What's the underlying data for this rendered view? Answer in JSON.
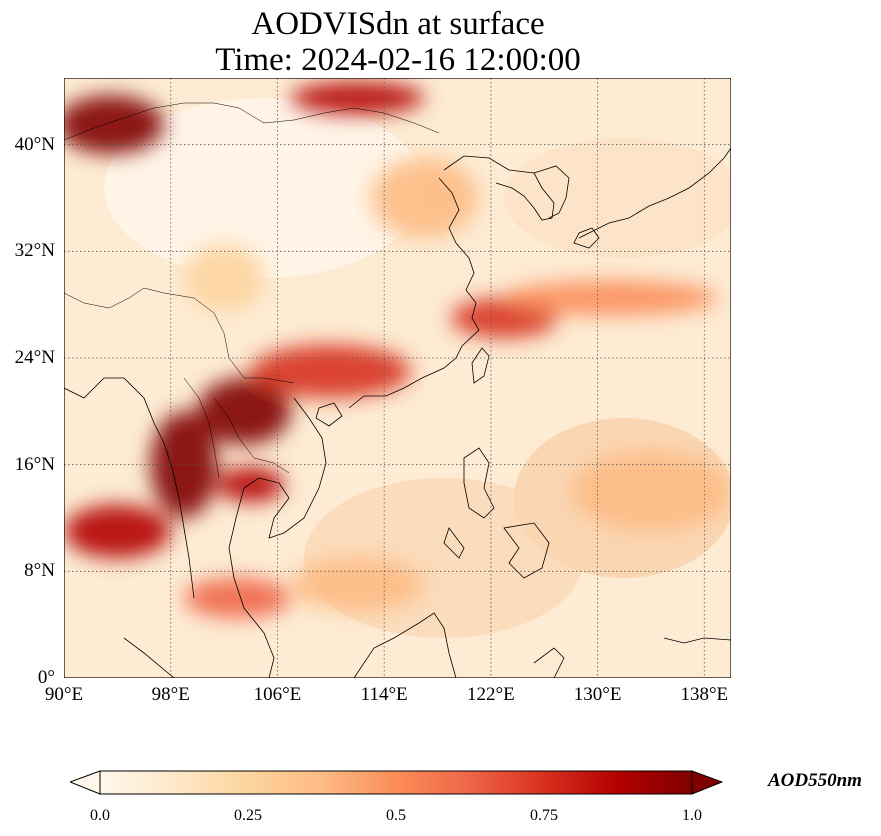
{
  "title_line1": "AODVISdn at surface",
  "title_line2": "Time: 2024-02-16 12:00:00",
  "map": {
    "projection": "PlateCarree",
    "lon_range": [
      90,
      140
    ],
    "lat_range": [
      0,
      45
    ],
    "lat_ticks": [
      {
        "value": 0,
        "label": "0°"
      },
      {
        "value": 8,
        "label": "8°N"
      },
      {
        "value": 16,
        "label": "16°N"
      },
      {
        "value": 24,
        "label": "24°N"
      },
      {
        "value": 32,
        "label": "32°N"
      },
      {
        "value": 40,
        "label": "40°N"
      }
    ],
    "lon_ticks": [
      {
        "value": 90,
        "label": "90°E"
      },
      {
        "value": 98,
        "label": "98°E"
      },
      {
        "value": 106,
        "label": "106°E"
      },
      {
        "value": 114,
        "label": "114°E"
      },
      {
        "value": 122,
        "label": "122°E"
      },
      {
        "value": 130,
        "label": "130°E"
      },
      {
        "value": 138,
        "label": "138°E"
      }
    ],
    "gridlines": "dotted",
    "field": "AOD550nm",
    "plumes": [
      {
        "name": "west-china-north",
        "lon": 93.5,
        "lat": 41.5,
        "rlon": 4,
        "rlat": 2.2,
        "aod": 1.0
      },
      {
        "name": "mongolia-strip",
        "lon": 112,
        "lat": 43.5,
        "rlon": 5,
        "rlat": 1.2,
        "aod": 0.9
      },
      {
        "name": "laos-north",
        "lon": 103.5,
        "lat": 20,
        "rlon": 3.5,
        "rlat": 2.5,
        "aod": 1.0
      },
      {
        "name": "myanmar-thailand",
        "lon": 99,
        "lat": 16,
        "rlon": 2.5,
        "rlat": 4,
        "aod": 0.95
      },
      {
        "name": "cambodia",
        "lon": 104,
        "lat": 14.5,
        "rlon": 2.5,
        "rlat": 1.3,
        "aod": 0.9
      },
      {
        "name": "south-china",
        "lon": 110,
        "lat": 23,
        "rlon": 6,
        "rlat": 2,
        "aod": 0.7
      },
      {
        "name": "taiwan-east-sea",
        "lon": 123,
        "lat": 27,
        "rlon": 4,
        "rlat": 1.5,
        "aod": 0.8
      },
      {
        "name": "japan-south-band",
        "lon": 131,
        "lat": 28.5,
        "rlon": 8,
        "rlat": 1.3,
        "aod": 0.55
      },
      {
        "name": "andaman",
        "lon": 94,
        "lat": 11,
        "rlon": 4,
        "rlat": 2,
        "aod": 0.85
      },
      {
        "name": "malaysia",
        "lon": 103,
        "lat": 6,
        "rlon": 4,
        "rlat": 1.5,
        "aod": 0.6
      },
      {
        "name": "pacific-east",
        "lon": 134,
        "lat": 14,
        "rlon": 6,
        "rlat": 3,
        "aod": 0.4
      },
      {
        "name": "yellow-sea",
        "lon": 117,
        "lat": 36,
        "rlon": 4,
        "rlat": 3,
        "aod": 0.35
      },
      {
        "name": "tibet-east",
        "lon": 102,
        "lat": 30,
        "rlon": 3,
        "rlat": 2.5,
        "aod": 0.3
      },
      {
        "name": "scs-south",
        "lon": 112,
        "lat": 7,
        "rlon": 5,
        "rlat": 2,
        "aod": 0.4
      }
    ]
  },
  "colorbar": {
    "label": "AOD550nm",
    "min": 0.0,
    "max": 1.0,
    "extend": "both",
    "colormap": "OrRd",
    "ticks": [
      {
        "value": 0.0,
        "label": "0.0"
      },
      {
        "value": 0.25,
        "label": "0.25"
      },
      {
        "value": 0.5,
        "label": "0.5"
      },
      {
        "value": 0.75,
        "label": "0.75"
      },
      {
        "value": 1.0,
        "label": "1.0"
      }
    ],
    "colors": [
      "#fff7ec",
      "#fee8c8",
      "#fdd49e",
      "#fdbb84",
      "#fc8d59",
      "#ef6548",
      "#d7301f",
      "#b30000",
      "#7f0000"
    ]
  }
}
